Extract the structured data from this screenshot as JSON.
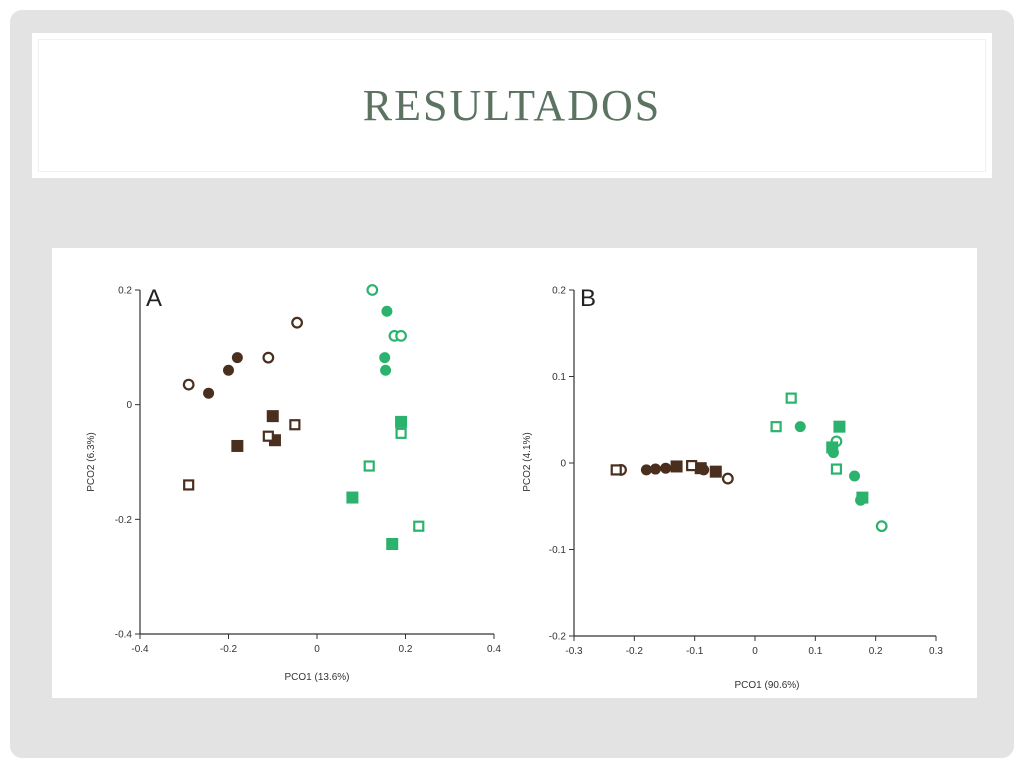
{
  "slide": {
    "title": "RESULTADOS"
  },
  "colors": {
    "brown": "#4a2f1e",
    "green": "#2bb26d",
    "title": "#5c7362"
  },
  "chart_data": [
    {
      "panel": "A",
      "type": "scatter",
      "xlabel": "PCO1 (13.6%)",
      "ylabel": "PCO2 (6.3%)",
      "xlim": [
        -0.4,
        0.4
      ],
      "ylim": [
        -0.4,
        0.2
      ],
      "xticks": [
        -0.4,
        -0.2,
        0,
        0.2,
        0.4
      ],
      "xtick_labels": [
        "-0.4",
        "-0.2",
        "0",
        "0.2",
        "0.4"
      ],
      "yticks": [
        -0.4,
        -0.2,
        0,
        0.2
      ],
      "ytick_labels": [
        "-0.4",
        "-0.2",
        "0",
        "0.2"
      ],
      "grid": false,
      "series": [
        {
          "marker": "circle-open",
          "color": "brown",
          "points": [
            [
              -0.29,
              0.035
            ],
            [
              -0.11,
              0.082
            ],
            [
              -0.045,
              0.143
            ]
          ]
        },
        {
          "marker": "circle-filled",
          "color": "brown",
          "points": [
            [
              -0.245,
              0.02
            ],
            [
              -0.2,
              0.06
            ],
            [
              -0.18,
              0.082
            ]
          ]
        },
        {
          "marker": "square-filled",
          "color": "brown",
          "points": [
            [
              -0.18,
              -0.072
            ],
            [
              -0.1,
              -0.02
            ],
            [
              -0.095,
              -0.062
            ]
          ]
        },
        {
          "marker": "square-open",
          "color": "brown",
          "points": [
            [
              -0.29,
              -0.14
            ],
            [
              -0.11,
              -0.055
            ],
            [
              -0.05,
              -0.035
            ]
          ]
        },
        {
          "marker": "circle-open",
          "color": "green",
          "points": [
            [
              0.125,
              0.2
            ],
            [
              0.175,
              0.12
            ],
            [
              0.19,
              0.12
            ]
          ]
        },
        {
          "marker": "circle-filled",
          "color": "green",
          "points": [
            [
              0.158,
              0.163
            ],
            [
              0.153,
              0.082
            ],
            [
              0.155,
              0.06
            ]
          ]
        },
        {
          "marker": "square-filled",
          "color": "green",
          "points": [
            [
              0.19,
              -0.03
            ],
            [
              0.08,
              -0.162
            ],
            [
              0.17,
              -0.243
            ]
          ]
        },
        {
          "marker": "square-open",
          "color": "green",
          "points": [
            [
              0.19,
              -0.05
            ],
            [
              0.118,
              -0.107
            ],
            [
              0.23,
              -0.212
            ]
          ]
        }
      ]
    },
    {
      "panel": "B",
      "type": "scatter",
      "xlabel": "PCO1 (90.6%)",
      "ylabel": "PCO2 (4.1%)",
      "xlim": [
        -0.3,
        0.3
      ],
      "ylim": [
        -0.2,
        0.2
      ],
      "xticks": [
        -0.3,
        -0.2,
        -0.1,
        0,
        0.1,
        0.2,
        0.3
      ],
      "xtick_labels": [
        "-0.3",
        "-0.2",
        "-0.1",
        "0",
        "0.1",
        "0.2",
        "0.3"
      ],
      "yticks": [
        -0.2,
        -0.1,
        0,
        0.1,
        0.2
      ],
      "ytick_labels": [
        "-0.2",
        "-0.1",
        "0",
        "0.1",
        "0.2"
      ],
      "grid": false,
      "series": [
        {
          "marker": "circle-open",
          "color": "brown",
          "points": [
            [
              -0.222,
              -0.008
            ],
            [
              -0.045,
              -0.018
            ]
          ]
        },
        {
          "marker": "circle-filled",
          "color": "brown",
          "points": [
            [
              -0.18,
              -0.008
            ],
            [
              -0.165,
              -0.007
            ],
            [
              -0.148,
              -0.006
            ],
            [
              -0.085,
              -0.008
            ]
          ]
        },
        {
          "marker": "square-filled",
          "color": "brown",
          "points": [
            [
              -0.13,
              -0.004
            ],
            [
              -0.09,
              -0.006
            ],
            [
              -0.065,
              -0.01
            ]
          ]
        },
        {
          "marker": "square-open",
          "color": "brown",
          "points": [
            [
              -0.23,
              -0.008
            ],
            [
              -0.105,
              -0.003
            ]
          ]
        },
        {
          "marker": "circle-open",
          "color": "green",
          "points": [
            [
              0.135,
              0.025
            ],
            [
              0.21,
              -0.073
            ]
          ]
        },
        {
          "marker": "circle-filled",
          "color": "green",
          "points": [
            [
              0.075,
              0.042
            ],
            [
              0.13,
              0.012
            ],
            [
              0.165,
              -0.015
            ],
            [
              0.175,
              -0.043
            ]
          ]
        },
        {
          "marker": "square-filled",
          "color": "green",
          "points": [
            [
              0.14,
              0.042
            ],
            [
              0.128,
              0.018
            ],
            [
              0.178,
              -0.04
            ]
          ]
        },
        {
          "marker": "square-open",
          "color": "green",
          "points": [
            [
              0.035,
              0.042
            ],
            [
              0.06,
              0.075
            ],
            [
              0.135,
              -0.007
            ]
          ]
        }
      ]
    }
  ]
}
